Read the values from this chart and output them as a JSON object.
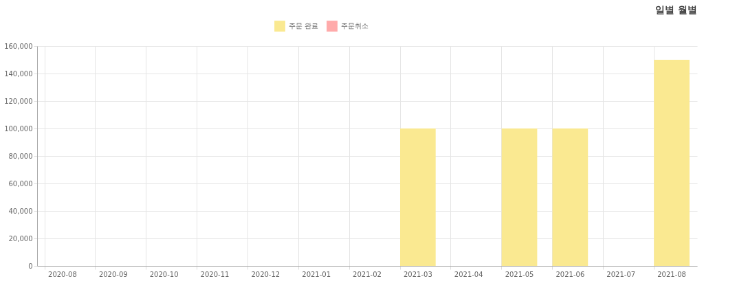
{
  "chart_data": {
    "type": "bar",
    "categories": [
      "2020-08",
      "2020-09",
      "2020-10",
      "2020-11",
      "2020-12",
      "2021-01",
      "2021-02",
      "2021-03",
      "2021-04",
      "2021-05",
      "2021-06",
      "2021-07",
      "2021-08"
    ],
    "series": [
      {
        "name": "주문 완료",
        "color": "#fae991",
        "values": [
          0,
          0,
          0,
          0,
          0,
          0,
          0,
          100000,
          0,
          100000,
          100000,
          0,
          150000
        ]
      },
      {
        "name": "주문취소",
        "color": "#ffaaaa",
        "values": [
          null,
          null,
          null,
          null,
          null,
          null,
          null,
          null,
          null,
          null,
          null,
          null,
          null
        ]
      }
    ],
    "ylim": [
      0,
      160000
    ],
    "yticks": [
      0,
      {
        "value": 20000,
        "label": "20,000"
      },
      {
        "value": 40000,
        "label": "40,000"
      },
      {
        "value": 60000,
        "label": "60,000"
      },
      {
        "value": 80000,
        "label": "80,000"
      },
      {
        "value": 100000,
        "label": "100,000"
      },
      {
        "value": 120000,
        "label": "120,000"
      },
      {
        "value": 140000,
        "label": "140,000"
      },
      {
        "value": 160000,
        "label": "160,000"
      }
    ],
    "grid": true,
    "legend": "top",
    "annotations": [
      "일별 월별"
    ]
  }
}
